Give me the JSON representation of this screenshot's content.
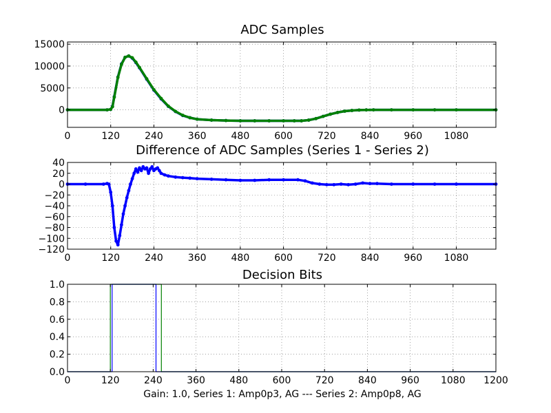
{
  "figure": {
    "xlabel": "Gain: 1.0, Series 1: Amp0p3, AG --- Series 2: Amp0p8, AG"
  },
  "chart_data": [
    {
      "type": "line",
      "title": "ADC Samples",
      "xlim": [
        0,
        1190
      ],
      "ylim": [
        -4000,
        15500
      ],
      "xticks": [
        0,
        120,
        240,
        360,
        480,
        600,
        720,
        840,
        960,
        1080
      ],
      "yticks": [
        0,
        5000,
        10000,
        15000
      ],
      "grid": true,
      "series": [
        {
          "color": "#0000ff",
          "marker": "dot",
          "x": [
            0,
            110,
            120,
            125,
            130,
            140,
            150,
            160,
            170,
            180,
            190,
            200,
            220,
            240,
            260,
            280,
            300,
            320,
            340,
            360,
            400,
            440,
            480,
            520,
            560,
            600,
            630,
            650,
            670,
            690,
            710,
            730,
            750,
            770,
            790,
            810,
            830,
            850,
            900,
            960,
            1020,
            1080,
            1190
          ],
          "y": [
            0,
            0,
            100,
            800,
            3000,
            7500,
            10500,
            12000,
            12300,
            11800,
            10800,
            9600,
            7000,
            4500,
            2500,
            800,
            -400,
            -1300,
            -1800,
            -2150,
            -2350,
            -2450,
            -2500,
            -2500,
            -2500,
            -2500,
            -2500,
            -2500,
            -2350,
            -2000,
            -1500,
            -1000,
            -600,
            -300,
            -150,
            -50,
            -20,
            0,
            0,
            0,
            0,
            0,
            0
          ]
        },
        {
          "color": "#008000",
          "marker": "dot",
          "x": [
            0,
            110,
            120,
            125,
            130,
            140,
            150,
            160,
            170,
            180,
            190,
            200,
            220,
            240,
            260,
            280,
            300,
            320,
            340,
            360,
            400,
            440,
            480,
            520,
            560,
            600,
            630,
            650,
            670,
            690,
            710,
            730,
            750,
            770,
            790,
            810,
            830,
            850,
            900,
            960,
            1020,
            1080,
            1190
          ],
          "y": [
            0,
            0,
            100,
            700,
            2900,
            7400,
            10400,
            12000,
            12300,
            11900,
            10900,
            9700,
            7100,
            4600,
            2600,
            850,
            -350,
            -1250,
            -1800,
            -2150,
            -2350,
            -2450,
            -2500,
            -2500,
            -2500,
            -2500,
            -2500,
            -2500,
            -2350,
            -2000,
            -1500,
            -1000,
            -600,
            -300,
            -150,
            -50,
            -20,
            0,
            0,
            0,
            0,
            0,
            0
          ]
        }
      ]
    },
    {
      "type": "line",
      "title": "Difference of ADC Samples (Series 1 - Series 2)",
      "xlim": [
        0,
        1190
      ],
      "ylim": [
        -120,
        40
      ],
      "xticks": [
        0,
        120,
        240,
        360,
        480,
        600,
        720,
        840,
        960,
        1080
      ],
      "yticks": [
        40,
        20,
        0,
        -20,
        -40,
        -60,
        -80,
        -100,
        -120
      ],
      "grid": true,
      "series": [
        {
          "color": "#0000ff",
          "marker": "dot",
          "x": [
            0,
            50,
            100,
            110,
            115,
            120,
            125,
            130,
            135,
            140,
            145,
            150,
            155,
            160,
            165,
            170,
            175,
            180,
            185,
            190,
            195,
            200,
            205,
            210,
            215,
            220,
            225,
            230,
            235,
            240,
            245,
            250,
            255,
            260,
            270,
            280,
            300,
            320,
            340,
            360,
            400,
            440,
            480,
            520,
            560,
            600,
            640,
            660,
            680,
            700,
            720,
            740,
            760,
            780,
            800,
            820,
            840,
            860,
            900,
            960,
            1020,
            1080,
            1190
          ],
          "y": [
            0,
            0,
            0,
            1,
            0,
            -15,
            -40,
            -80,
            -105,
            -112,
            -95,
            -75,
            -55,
            -40,
            -25,
            -12,
            0,
            10,
            20,
            28,
            22,
            30,
            25,
            32,
            28,
            30,
            20,
            28,
            32,
            25,
            28,
            30,
            25,
            20,
            17,
            15,
            13,
            12,
            11,
            10,
            9,
            8,
            7,
            7,
            8,
            8,
            8,
            6,
            2,
            0,
            -1,
            -1,
            0,
            -1,
            0,
            2,
            1,
            1,
            0,
            0,
            0,
            0,
            0
          ]
        }
      ]
    },
    {
      "type": "line",
      "title": "Decision Bits",
      "xlim": [
        0,
        1200
      ],
      "ylim": [
        0.0,
        1.0
      ],
      "xticks": [
        0,
        120,
        240,
        360,
        480,
        600,
        720,
        840,
        960,
        1080,
        1200
      ],
      "yticks": [
        1.0,
        0.8,
        0.6,
        0.4,
        0.2,
        0.0
      ],
      "ytick_labels": [
        "1.0",
        "0.8",
        "0.6",
        "0.4",
        "0.2",
        "0.0"
      ],
      "grid": true,
      "series": [
        {
          "color": "#008000",
          "x": [
            0,
            120,
            120,
            263,
            263,
            1200
          ],
          "y": [
            0,
            0,
            1,
            1,
            0,
            0
          ]
        },
        {
          "color": "#0000ff",
          "x": [
            0,
            125,
            125,
            248,
            248,
            1200
          ],
          "y": [
            0,
            0,
            1,
            1,
            0,
            0
          ]
        }
      ]
    }
  ]
}
